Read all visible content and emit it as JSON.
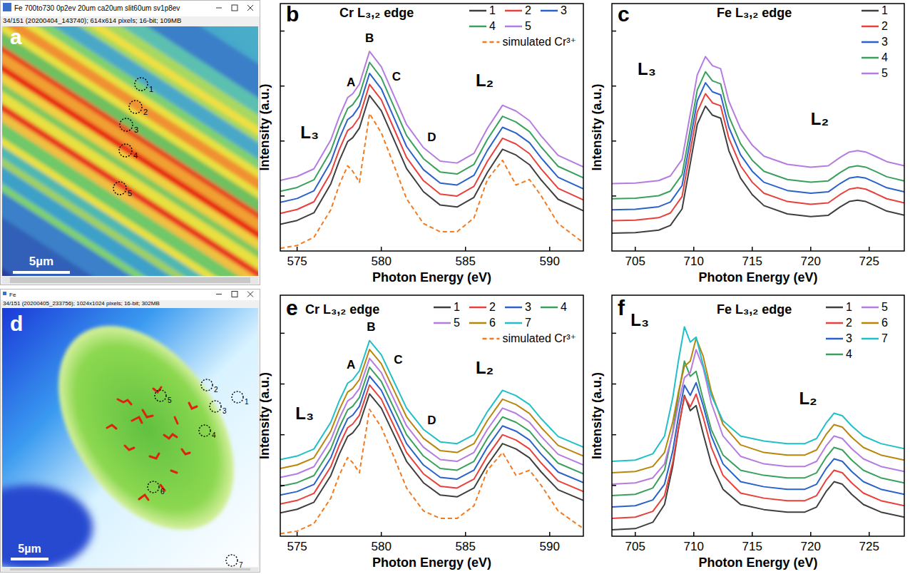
{
  "images": [
    {
      "panel_label": "a",
      "window_title": "Fe 700to730 0p2ev 20um ca20um slit60um sv1p8ev",
      "info": "34/151 (20200404_143740); 614x614 pixels; 16-bit; 109MB",
      "scale_bar": "5µm",
      "markers": [
        "1",
        "2",
        "3",
        "4",
        "5"
      ]
    },
    {
      "panel_label": "d",
      "window_title": "Fe",
      "info": "34/151 (20200405_233756); 1024x1024 pixels; 16-bit; 302MB",
      "scale_bar": "5µm",
      "markers": [
        "1",
        "2",
        "3",
        "4",
        "5",
        "6",
        "7"
      ]
    }
  ],
  "chart_data": [
    {
      "type": "line",
      "panel_label": "b",
      "title": "Cr L₃,₂ edge",
      "x_label": "Photon Energy (eV)",
      "y_label": "Intensity (a.u.)",
      "x": [
        574,
        575,
        576,
        577,
        577.5,
        578,
        578.3,
        578.7,
        579.3,
        580,
        580.7,
        581.5,
        582.5,
        583.5,
        584.5,
        585.5,
        586.3,
        587.2,
        588,
        588.8,
        589.5,
        590.5,
        592
      ],
      "xlim": [
        574,
        592
      ],
      "xticks": [
        575,
        580,
        585,
        590
      ],
      "ylim": [
        0,
        9
      ],
      "yticks": [
        2,
        4,
        6,
        8
      ],
      "tick_labels": "x",
      "grid": false,
      "legend": "upper right",
      "annotations": [
        "L₃",
        "A",
        "B",
        "C",
        "D",
        "L₂"
      ],
      "series": [
        {
          "name": "1",
          "color": "#3f3f3f",
          "line_style": "solid",
          "values": [
            0.97,
            1.11,
            1.39,
            2.44,
            3.28,
            3.98,
            4.12,
            4.47,
            5.66,
            5.1,
            4.12,
            3.0,
            2.16,
            1.67,
            1.6,
            1.95,
            2.86,
            3.7,
            3.49,
            3.14,
            2.58,
            1.88,
            1.46
          ]
        },
        {
          "name": "2",
          "color": "#e8403a",
          "line_style": "solid",
          "values": [
            1.37,
            1.51,
            1.79,
            2.84,
            3.68,
            4.38,
            4.52,
            4.87,
            6.06,
            5.5,
            4.52,
            3.4,
            2.56,
            2.07,
            2.0,
            2.35,
            3.26,
            4.1,
            3.89,
            3.54,
            2.98,
            2.28,
            1.86
          ]
        },
        {
          "name": "3",
          "color": "#2a62c9",
          "line_style": "solid",
          "values": [
            1.77,
            1.91,
            2.19,
            3.24,
            4.08,
            4.78,
            4.92,
            5.27,
            6.46,
            5.9,
            4.92,
            3.8,
            2.96,
            2.47,
            2.4,
            2.75,
            3.66,
            4.5,
            4.29,
            3.94,
            3.38,
            2.68,
            2.26
          ]
        },
        {
          "name": "4",
          "color": "#3aa05c",
          "line_style": "solid",
          "values": [
            2.17,
            2.31,
            2.59,
            3.64,
            4.48,
            5.18,
            5.32,
            5.67,
            6.86,
            6.3,
            5.32,
            4.2,
            3.36,
            2.87,
            2.8,
            3.15,
            4.06,
            4.9,
            4.69,
            4.34,
            3.78,
            3.08,
            2.66
          ]
        },
        {
          "name": "5",
          "color": "#b57be0",
          "line_style": "solid",
          "values": [
            2.57,
            2.71,
            2.99,
            4.04,
            4.88,
            5.58,
            5.72,
            6.07,
            7.26,
            6.7,
            5.72,
            4.6,
            3.76,
            3.27,
            3.2,
            3.55,
            4.46,
            5.3,
            5.09,
            4.74,
            4.18,
            3.48,
            3.06
          ]
        },
        {
          "name": "simulated Cr³⁺",
          "color": "#f47a20",
          "line_style": "dashed",
          "values": [
            0.1,
            0.2,
            0.5,
            1.5,
            2.4,
            3.1,
            2.9,
            2.5,
            5.0,
            4.3,
            3.2,
            1.9,
            1.0,
            0.7,
            0.7,
            1.2,
            2.6,
            3.3,
            2.4,
            2.6,
            2.0,
            1.0,
            0.3
          ]
        }
      ]
    },
    {
      "type": "line",
      "panel_label": "c",
      "title": "Fe L₃,₂ edge",
      "x_label": "Photon Energy (eV)",
      "y_label": "Intensity (a.u.)",
      "x": [
        703,
        705,
        707,
        708,
        709,
        709.7,
        710.3,
        711,
        711.6,
        712.3,
        713,
        714,
        715,
        716,
        718,
        720,
        721.5,
        722.5,
        723.3,
        724,
        724.7,
        725.5,
        726.5,
        728
      ],
      "xlim": [
        703,
        728
      ],
      "xticks": [
        705,
        710,
        715,
        720,
        725
      ],
      "ylim": [
        0,
        9
      ],
      "yticks": [
        2,
        4,
        6,
        8
      ],
      "tick_labels": "x",
      "grid": false,
      "legend": "upper right",
      "annotations": [
        "L₃",
        "L₂"
      ],
      "series": [
        {
          "name": "1",
          "color": "#3f3f3f",
          "line_style": "solid",
          "values": [
            0.65,
            0.67,
            0.76,
            0.93,
            1.53,
            3.18,
            4.61,
            5.27,
            4.94,
            4.83,
            3.65,
            2.65,
            2.05,
            1.65,
            1.35,
            1.25,
            1.3,
            1.6,
            1.8,
            1.85,
            1.8,
            1.65,
            1.45,
            1.3
          ]
        },
        {
          "name": "2",
          "color": "#e8403a",
          "line_style": "solid",
          "values": [
            1.1,
            1.12,
            1.21,
            1.38,
            1.98,
            3.63,
            5.06,
            5.72,
            5.39,
            5.28,
            4.1,
            3.1,
            2.5,
            2.1,
            1.8,
            1.7,
            1.75,
            2.05,
            2.25,
            2.3,
            2.25,
            2.1,
            1.9,
            1.75
          ]
        },
        {
          "name": "3",
          "color": "#2a62c9",
          "line_style": "solid",
          "values": [
            1.5,
            1.52,
            1.61,
            1.78,
            2.38,
            4.03,
            5.46,
            6.12,
            5.79,
            5.68,
            4.5,
            3.5,
            2.9,
            2.5,
            2.2,
            2.1,
            2.15,
            2.45,
            2.65,
            2.7,
            2.65,
            2.5,
            2.3,
            2.15
          ]
        },
        {
          "name": "4",
          "color": "#3aa05c",
          "line_style": "solid",
          "values": [
            1.9,
            1.92,
            2.01,
            2.18,
            2.78,
            4.43,
            5.86,
            6.52,
            6.19,
            6.08,
            4.9,
            3.9,
            3.3,
            2.9,
            2.6,
            2.5,
            2.55,
            2.85,
            3.05,
            3.1,
            3.05,
            2.9,
            2.7,
            2.55
          ]
        },
        {
          "name": "5",
          "color": "#b57be0",
          "line_style": "solid",
          "values": [
            2.45,
            2.47,
            2.56,
            2.73,
            3.33,
            4.98,
            6.41,
            7.07,
            6.74,
            6.63,
            5.45,
            4.45,
            3.85,
            3.45,
            3.15,
            3.05,
            3.1,
            3.4,
            3.6,
            3.65,
            3.6,
            3.45,
            3.25,
            3.1
          ]
        }
      ]
    },
    {
      "type": "line",
      "panel_label": "e",
      "title": "Cr L₃,₂ edge",
      "x_label": "Photon Energy (eV)",
      "y_label": "Intensity (a.u.)",
      "x": [
        574,
        575,
        576,
        577,
        577.5,
        578,
        578.3,
        578.7,
        579.3,
        580,
        580.7,
        581.5,
        582.5,
        583.5,
        584.5,
        585.5,
        586.3,
        587.2,
        588,
        588.8,
        589.5,
        590.5,
        592
      ],
      "xlim": [
        574,
        592
      ],
      "xticks": [
        575,
        580,
        585,
        590
      ],
      "ylim": [
        0,
        9.5
      ],
      "yticks": [
        2,
        4,
        6,
        8
      ],
      "tick_labels": "x",
      "grid": false,
      "legend": "upper right",
      "annotations": [
        "L₃",
        "A",
        "B",
        "C",
        "D",
        "L₂"
      ],
      "series": [
        {
          "name": "1",
          "color": "#3f3f3f",
          "line_style": "solid",
          "values": [
            0.92,
            1.06,
            1.34,
            2.39,
            3.23,
            3.93,
            4.07,
            4.42,
            5.61,
            5.05,
            4.07,
            2.95,
            2.11,
            1.62,
            1.55,
            1.9,
            2.81,
            3.65,
            3.44,
            3.09,
            2.53,
            1.83,
            1.41
          ]
        },
        {
          "name": "2",
          "color": "#e8403a",
          "line_style": "solid",
          "values": [
            1.27,
            1.41,
            1.69,
            2.74,
            3.58,
            4.28,
            4.42,
            4.77,
            5.96,
            5.4,
            4.42,
            3.3,
            2.46,
            1.97,
            1.9,
            2.25,
            3.16,
            4.0,
            3.79,
            3.44,
            2.88,
            2.18,
            1.76
          ]
        },
        {
          "name": "3",
          "color": "#2a62c9",
          "line_style": "solid",
          "values": [
            1.62,
            1.76,
            2.04,
            3.09,
            3.93,
            4.63,
            4.77,
            5.12,
            6.31,
            5.75,
            4.77,
            3.65,
            2.81,
            2.32,
            2.25,
            2.6,
            3.51,
            4.35,
            4.14,
            3.79,
            3.23,
            2.53,
            2.11
          ]
        },
        {
          "name": "4",
          "color": "#3aa05c",
          "line_style": "solid",
          "values": [
            1.97,
            2.11,
            2.39,
            3.44,
            4.28,
            4.98,
            5.12,
            5.47,
            6.66,
            6.1,
            5.12,
            4.0,
            3.16,
            2.67,
            2.6,
            2.95,
            3.86,
            4.7,
            4.49,
            4.14,
            3.58,
            2.88,
            2.46
          ]
        },
        {
          "name": "5",
          "color": "#b57be0",
          "line_style": "solid",
          "values": [
            2.32,
            2.46,
            2.74,
            3.79,
            4.63,
            5.33,
            5.47,
            5.82,
            7.01,
            6.45,
            5.47,
            4.35,
            3.51,
            3.02,
            2.95,
            3.3,
            4.21,
            5.05,
            4.84,
            4.49,
            3.93,
            3.23,
            2.81
          ]
        },
        {
          "name": "6",
          "color": "#b8860b",
          "line_style": "solid",
          "values": [
            2.67,
            2.81,
            3.09,
            4.14,
            4.98,
            5.68,
            5.82,
            6.17,
            7.36,
            6.8,
            5.82,
            4.7,
            3.86,
            3.37,
            3.3,
            3.65,
            4.56,
            5.4,
            5.19,
            4.84,
            4.28,
            3.58,
            3.16
          ]
        },
        {
          "name": "7",
          "color": "#20c0c8",
          "line_style": "solid",
          "values": [
            3.02,
            3.16,
            3.44,
            4.49,
            5.33,
            6.03,
            6.17,
            6.52,
            7.71,
            7.15,
            6.17,
            5.05,
            4.21,
            3.72,
            3.65,
            4.0,
            4.91,
            5.75,
            5.54,
            5.19,
            4.63,
            3.93,
            3.51
          ]
        },
        {
          "name": "simulated Cr³⁺",
          "color": "#f47a20",
          "line_style": "dashed",
          "values": [
            0.1,
            0.2,
            0.5,
            1.5,
            2.4,
            3.1,
            2.9,
            2.5,
            5.0,
            4.3,
            3.2,
            1.9,
            1.0,
            0.7,
            0.7,
            1.2,
            2.6,
            3.3,
            2.4,
            2.6,
            2.0,
            1.0,
            0.3
          ]
        }
      ]
    },
    {
      "type": "line",
      "panel_label": "f",
      "title": "Fe L₃,₂ edge",
      "x_label": "Photon Energy (eV)",
      "y_label": "Intensity (a.u.)",
      "x": [
        703,
        705,
        706.5,
        707.5,
        708.2,
        708.7,
        709.2,
        709.7,
        710.2,
        710.8,
        711.5,
        712.5,
        714,
        716,
        718,
        719.5,
        720.5,
        721.3,
        722,
        722.7,
        723.5,
        724.5,
        726,
        728
      ],
      "xlim": [
        703,
        728
      ],
      "xticks": [
        705,
        710,
        715,
        720,
        725
      ],
      "ylim": [
        0,
        9.5
      ],
      "yticks": [
        2,
        4,
        6,
        8
      ],
      "tick_labels": "x",
      "grid": false,
      "legend": "upper right",
      "annotations": [
        "L₃",
        "L₂"
      ],
      "series": [
        {
          "name": "1",
          "color": "#3f3f3f",
          "line_style": "solid",
          "values": [
            0.25,
            0.3,
            0.55,
            1.25,
            2.75,
            4.25,
            5.55,
            4.95,
            5.15,
            4.05,
            2.85,
            1.85,
            1.25,
            1.05,
            0.95,
            0.95,
            1.15,
            1.75,
            2.15,
            2.05,
            1.65,
            1.25,
            0.95,
            0.75
          ]
        },
        {
          "name": "2",
          "color": "#e8403a",
          "line_style": "solid",
          "values": [
            0.7,
            0.75,
            0.98,
            1.6,
            2.9,
            4.3,
            5.5,
            5.1,
            5.6,
            4.7,
            3.5,
            2.4,
            1.7,
            1.5,
            1.4,
            1.4,
            1.6,
            2.2,
            2.6,
            2.5,
            2.1,
            1.7,
            1.4,
            1.2
          ]
        },
        {
          "name": "3",
          "color": "#2a62c9",
          "line_style": "solid",
          "values": [
            1.15,
            1.2,
            1.43,
            2.05,
            3.35,
            4.75,
            5.95,
            5.55,
            6.05,
            5.15,
            3.95,
            2.85,
            2.15,
            1.95,
            1.85,
            1.85,
            2.05,
            2.65,
            3.05,
            2.95,
            2.55,
            2.15,
            1.85,
            1.65
          ]
        },
        {
          "name": "4",
          "color": "#3aa05c",
          "line_style": "solid",
          "values": [
            1.6,
            1.65,
            1.9,
            2.6,
            4.1,
            5.6,
            6.9,
            6.3,
            6.5,
            5.4,
            4.2,
            3.2,
            2.6,
            2.4,
            2.3,
            2.3,
            2.5,
            3.1,
            3.5,
            3.4,
            3.0,
            2.6,
            2.3,
            2.1
          ]
        },
        {
          "name": "5",
          "color": "#b57be0",
          "line_style": "solid",
          "values": [
            2.05,
            2.1,
            2.3,
            2.85,
            4.05,
            5.25,
            6.25,
            6.45,
            7.35,
            6.65,
            5.25,
            3.95,
            3.15,
            2.85,
            2.75,
            2.75,
            2.95,
            3.55,
            3.95,
            3.85,
            3.45,
            3.05,
            2.75,
            2.55
          ]
        },
        {
          "name": "6",
          "color": "#b8860b",
          "line_style": "solid",
          "values": [
            2.5,
            2.55,
            2.75,
            3.3,
            4.5,
            5.7,
            6.7,
            6.9,
            7.8,
            7.1,
            5.7,
            4.4,
            3.6,
            3.3,
            3.2,
            3.2,
            3.4,
            4.0,
            4.4,
            4.3,
            3.9,
            3.5,
            3.2,
            3.0
          ]
        },
        {
          "name": "7",
          "color": "#20c0c8",
          "line_style": "solid",
          "values": [
            2.95,
            3.0,
            3.25,
            3.95,
            5.45,
            6.95,
            8.25,
            7.65,
            7.85,
            6.75,
            5.55,
            4.55,
            3.95,
            3.75,
            3.65,
            3.65,
            3.85,
            4.45,
            4.85,
            4.75,
            4.35,
            3.95,
            3.65,
            3.45
          ]
        }
      ]
    }
  ]
}
